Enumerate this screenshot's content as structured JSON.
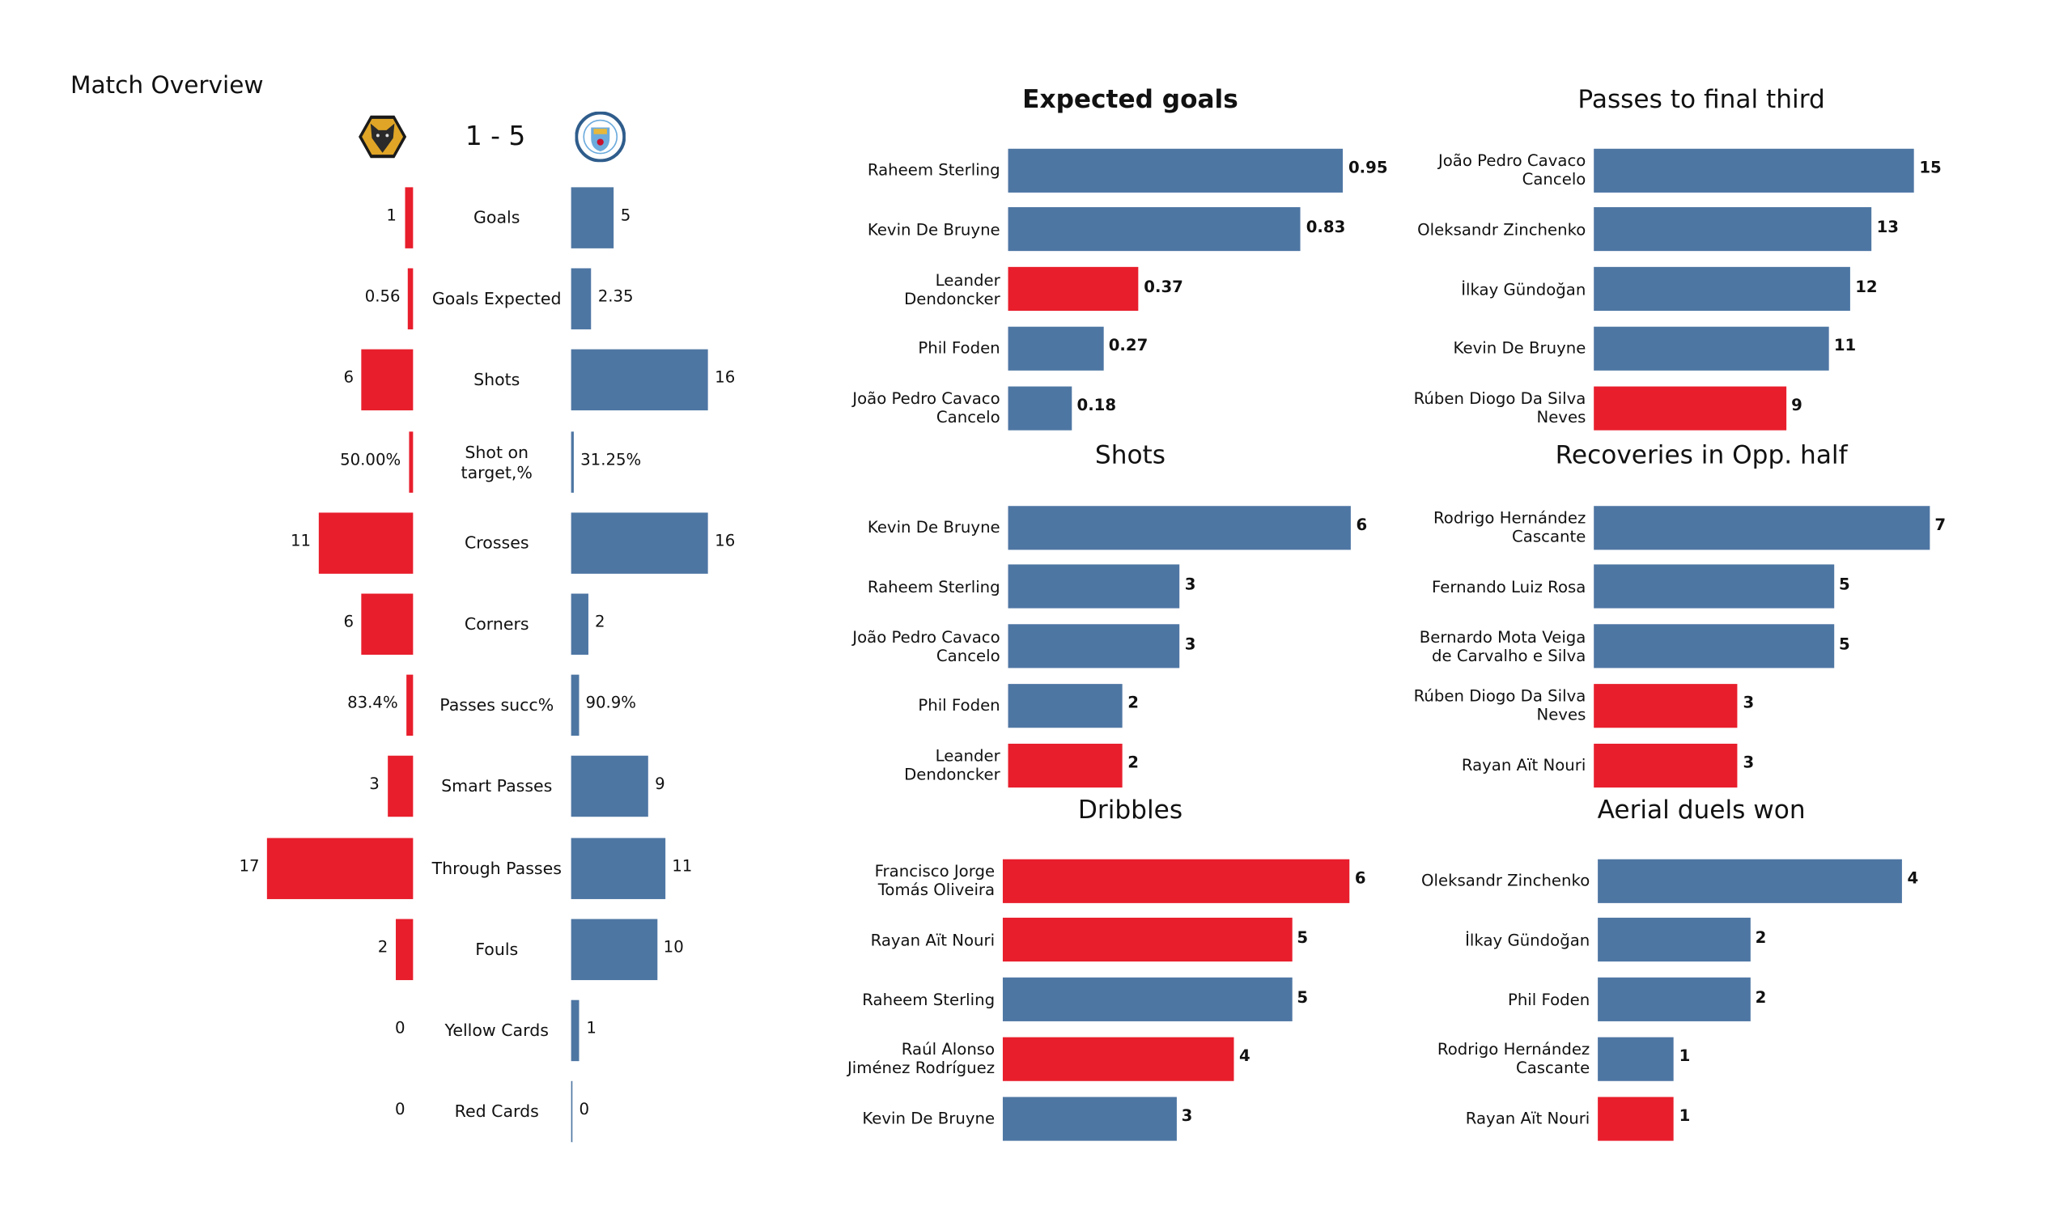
{
  "header": {
    "title": "Match Overview",
    "score": "1 - 5",
    "home_logo": "wolves-crest",
    "away_logo": "man-city-crest"
  },
  "colors": {
    "home": "#E81E2C",
    "away": "#4E76A3"
  },
  "chart_data": [
    {
      "type": "bar",
      "orientation": "diverging-horizontal",
      "title": "",
      "categories": [
        "Goals",
        "Goals Expected",
        "Shots",
        "Shot on target,%",
        "Crosses",
        "Corners",
        "Passes succ%",
        "Smart Passes",
        "Through Passes",
        "Fouls",
        "Yellow Cards",
        "Red Cards"
      ],
      "series": [
        {
          "team": "home",
          "values": [
            1,
            0.56,
            6,
            50.0,
            11,
            6,
            83.4,
            3,
            17,
            2,
            0,
            0
          ],
          "labels": [
            "1",
            "0.56",
            "6",
            "50.00%",
            "11",
            "6",
            "83.4%",
            "3",
            "17",
            "2",
            "0",
            "0"
          ]
        },
        {
          "team": "away",
          "values": [
            5,
            2.35,
            16,
            31.25,
            16,
            2,
            90.9,
            9,
            11,
            10,
            1,
            0
          ],
          "labels": [
            "5",
            "2.35",
            "16",
            "31.25%",
            "16",
            "2",
            "90.9%",
            "9",
            "11",
            "10",
            "1",
            "0"
          ]
        }
      ],
      "percent_categories": [
        "Shot on target,%",
        "Passes succ%"
      ]
    },
    {
      "type": "bar",
      "orientation": "horizontal",
      "title": "Expected goals",
      "title_bold": true,
      "categories": [
        "Raheem Sterling",
        "Kevin De Bruyne",
        "Leander\nDendoncker",
        "Phil Foden",
        "João Pedro Cavaco\nCancelo"
      ],
      "values": [
        0.95,
        0.83,
        0.37,
        0.27,
        0.18
      ],
      "labels": [
        "0.95",
        "0.83",
        "0.37",
        "0.27",
        "0.18"
      ],
      "teams": [
        "away",
        "away",
        "home",
        "away",
        "away"
      ]
    },
    {
      "type": "bar",
      "orientation": "horizontal",
      "title": "Passes to final third",
      "categories": [
        "João Pedro Cavaco\nCancelo",
        "Oleksandr Zinchenko",
        "İlkay Gündoğan",
        "Kevin De Bruyne",
        "Rúben Diogo Da Silva\nNeves"
      ],
      "values": [
        15,
        13,
        12,
        11,
        9
      ],
      "labels": [
        "15",
        "13",
        "12",
        "11",
        "9"
      ],
      "teams": [
        "away",
        "away",
        "away",
        "away",
        "home"
      ]
    },
    {
      "type": "bar",
      "orientation": "horizontal",
      "title": "Shots",
      "categories": [
        "Kevin De Bruyne",
        "Raheem Sterling",
        "João Pedro Cavaco\nCancelo",
        "Phil Foden",
        "Leander\nDendoncker"
      ],
      "values": [
        6,
        3,
        3,
        2,
        2
      ],
      "labels": [
        "6",
        "3",
        "3",
        "2",
        "2"
      ],
      "teams": [
        "away",
        "away",
        "away",
        "away",
        "home"
      ]
    },
    {
      "type": "bar",
      "orientation": "horizontal",
      "title": "Recoveries in Opp. half",
      "categories": [
        "Rodrigo Hernández\nCascante",
        "Fernando Luiz Rosa",
        "Bernardo Mota Veiga\nde Carvalho e Silva",
        "Rúben Diogo Da Silva\nNeves",
        "Rayan Aït Nouri"
      ],
      "values": [
        7,
        5,
        5,
        3,
        3
      ],
      "labels": [
        "7",
        "5",
        "5",
        "3",
        "3"
      ],
      "teams": [
        "away",
        "away",
        "away",
        "home",
        "home"
      ]
    },
    {
      "type": "bar",
      "orientation": "horizontal",
      "title": "Dribbles",
      "categories": [
        "Francisco Jorge\nTomás Oliveira",
        "Rayan Aït Nouri",
        "Raheem Sterling",
        "Raúl Alonso\nJiménez Rodríguez",
        "Kevin De Bruyne"
      ],
      "values": [
        6,
        5,
        5,
        4,
        3
      ],
      "labels": [
        "6",
        "5",
        "5",
        "4",
        "3"
      ],
      "teams": [
        "home",
        "home",
        "away",
        "home",
        "away"
      ]
    },
    {
      "type": "bar",
      "orientation": "horizontal",
      "title": "Aerial duels won",
      "categories": [
        "Oleksandr Zinchenko",
        "İlkay Gündoğan",
        "Phil Foden",
        "Rodrigo Hernández\nCascante",
        "Rayan Aït Nouri"
      ],
      "values": [
        4,
        2,
        2,
        1,
        1
      ],
      "labels": [
        "4",
        "2",
        "2",
        "1",
        "1"
      ],
      "teams": [
        "away",
        "away",
        "away",
        "away",
        "home"
      ]
    }
  ]
}
